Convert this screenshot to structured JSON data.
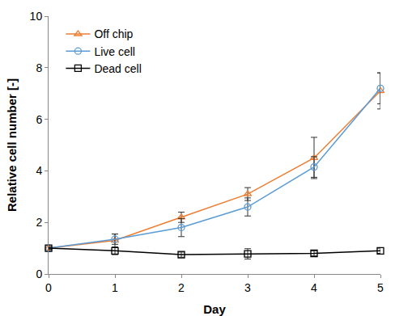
{
  "chart_data": {
    "type": "line",
    "x_label": "Day",
    "y_label": "Relative cell number [-]",
    "x": [
      0,
      1,
      2,
      3,
      4,
      5
    ],
    "series": [
      {
        "name": "Off chip",
        "color": "#ed7d31",
        "marker": "triangle-up-open",
        "line_style": "solid",
        "values": [
          1.0,
          1.3,
          2.2,
          3.1,
          4.5,
          7.1
        ],
        "errors": [
          0.05,
          0.25,
          0.2,
          0.25,
          0.8,
          0.7
        ]
      },
      {
        "name": "Live cell",
        "color": "#5b9bd5",
        "marker": "circle-open",
        "line_style": "solid",
        "values": [
          1.0,
          1.35,
          1.8,
          2.6,
          4.15,
          7.2
        ],
        "errors": [
          0.05,
          0.2,
          0.35,
          0.35,
          0.4,
          0.6
        ]
      },
      {
        "name": "Dead cell",
        "color": "#000000",
        "marker": "square-open",
        "line_style": "solid",
        "values": [
          1.0,
          0.9,
          0.75,
          0.78,
          0.8,
          0.9
        ],
        "errors": [
          0.05,
          0.15,
          0.1,
          0.2,
          0.1,
          0.1
        ]
      }
    ],
    "xlim": [
      0,
      5
    ],
    "xticks": [
      0,
      1,
      2,
      3,
      4,
      5
    ],
    "ylim": [
      0,
      10
    ],
    "yticks": [
      0,
      2,
      4,
      6,
      8,
      10
    ],
    "grid": false,
    "legend": "upper left"
  }
}
